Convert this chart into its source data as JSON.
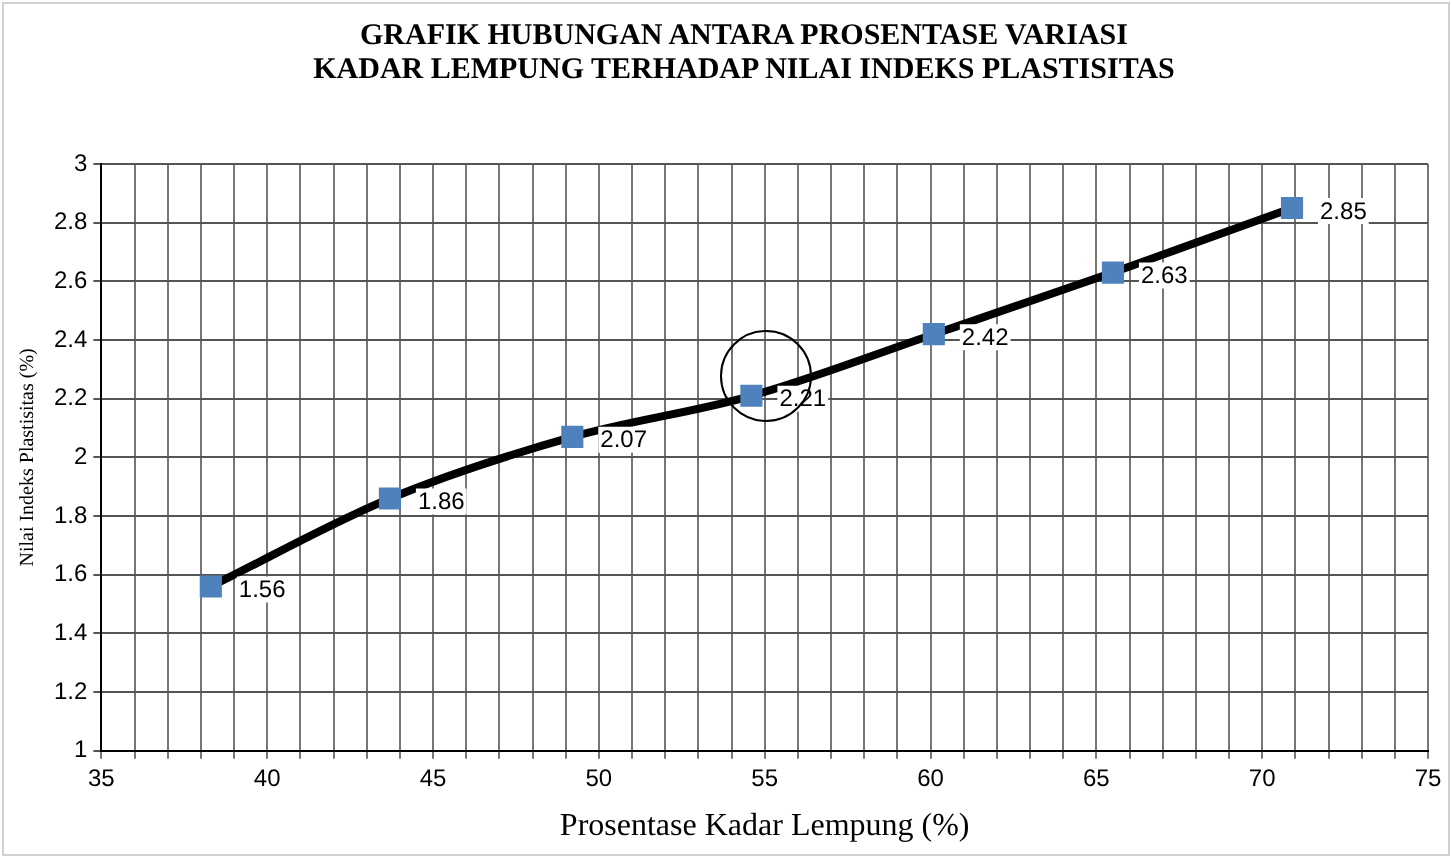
{
  "chart_data": {
    "type": "line",
    "title": "GRAFIK HUBUNGAN ANTARA PROSENTASE VARIASI KADAR LEMPUNG TERHADAP NILAI INDEKS PLASTISITAS",
    "xlabel": "Prosentase Kadar Lempung (%)",
    "ylabel": "Nilai Indeks Plastisitas (%)",
    "x": [
      38.3,
      43.7,
      49.2,
      54.6,
      60.1,
      65.5,
      70.9
    ],
    "series": [
      {
        "color": "#4f81bd",
        "values": [
          1.56,
          1.86,
          2.07,
          2.21,
          2.42,
          2.63,
          2.85
        ]
      }
    ],
    "xlim": [
      35,
      75
    ],
    "xticks": [
      35,
      {
        "value": 36,
        "label": null
      },
      {
        "value": 37,
        "label": null
      },
      {
        "value": 38,
        "label": null
      },
      {
        "value": 39,
        "label": null
      },
      40,
      {
        "value": 41,
        "label": null
      },
      {
        "value": 42,
        "label": null
      },
      {
        "value": 43,
        "label": null
      },
      {
        "value": 44,
        "label": null
      },
      45,
      {
        "value": 46,
        "label": null
      },
      {
        "value": 47,
        "label": null
      },
      {
        "value": 48,
        "label": null
      },
      {
        "value": 49,
        "label": null
      },
      50,
      {
        "value": 51,
        "label": null
      },
      {
        "value": 52,
        "label": null
      },
      {
        "value": 53,
        "label": null
      },
      {
        "value": 54,
        "label": null
      },
      55,
      {
        "value": 56,
        "label": null
      },
      {
        "value": 57,
        "label": null
      },
      {
        "value": 58,
        "label": null
      },
      {
        "value": 59,
        "label": null
      },
      60,
      {
        "value": 61,
        "label": null
      },
      {
        "value": 62,
        "label": null
      },
      {
        "value": 63,
        "label": null
      },
      {
        "value": 64,
        "label": null
      },
      65,
      {
        "value": 66,
        "label": null
      },
      {
        "value": 67,
        "label": null
      },
      {
        "value": 68,
        "label": null
      },
      {
        "value": 69,
        "label": null
      },
      70,
      {
        "value": 71,
        "label": null
      },
      {
        "value": 72,
        "label": null
      },
      {
        "value": 73,
        "label": null
      },
      {
        "value": 74,
        "label": null
      },
      75
    ],
    "ylim": [
      1,
      3
    ],
    "yticks": [
      1,
      1.2,
      1.4,
      1.6,
      1.8,
      2,
      2.2,
      2.4,
      2.6,
      2.8,
      3
    ],
    "grid": true,
    "legend": false,
    "marker": "square",
    "line_style": "solid",
    "data_labels": true
  }
}
